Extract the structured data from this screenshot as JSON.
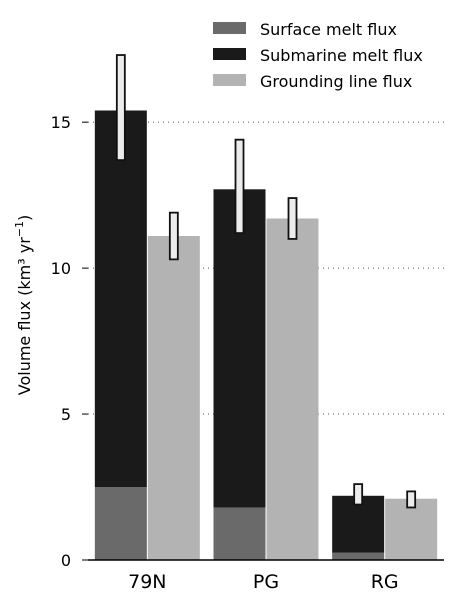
{
  "chart_data": {
    "type": "bar",
    "stacked_with_side_bar": true,
    "categories": [
      "79N",
      "PG",
      "RG"
    ],
    "ylabel_main": "Volume flux (km³ yr",
    "ylabel_sup": "−1",
    "ylabel_end": ")",
    "ylim": [
      0,
      18.5
    ],
    "yticks": [
      0,
      5,
      10,
      15
    ],
    "ytick_labels": [
      "0",
      "5",
      "10",
      "15"
    ],
    "grid": "dotted horizontal at ticks",
    "legend_position": "top-right",
    "series": [
      {
        "name": "Surface melt flux",
        "color": "#6a6a6a",
        "values": [
          2.5,
          1.8,
          0.25
        ]
      },
      {
        "name": "Submarine melt flux",
        "color": "#1a1a1a",
        "values": [
          12.9,
          10.9,
          1.95
        ]
      },
      {
        "name": "Grounding line flux",
        "color": "#b3b3b3",
        "values": [
          11.1,
          11.7,
          2.1
        ]
      }
    ],
    "melt_totals": [
      15.4,
      12.7,
      2.2
    ],
    "error_bars": {
      "melt": [
        [
          13.7,
          17.3
        ],
        [
          11.2,
          14.4
        ],
        [
          1.9,
          2.6
        ]
      ],
      "grounding_line": [
        [
          10.3,
          11.9
        ],
        [
          11.0,
          12.4
        ],
        [
          1.8,
          2.35
        ]
      ]
    }
  }
}
